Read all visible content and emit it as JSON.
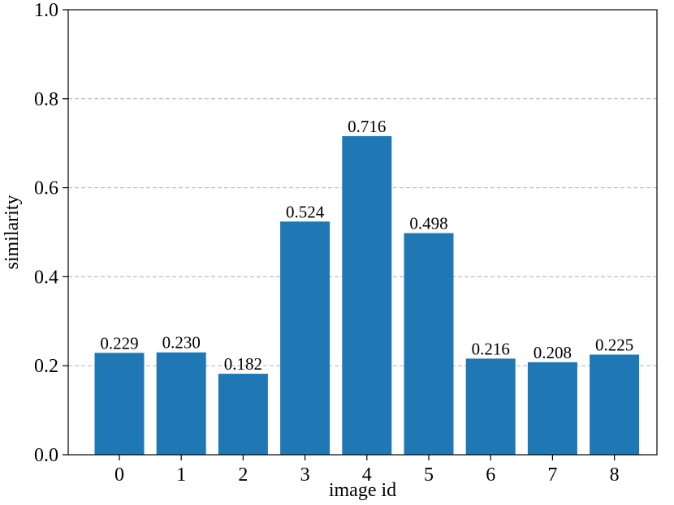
{
  "chart_data": {
    "type": "bar",
    "categories": [
      "0",
      "1",
      "2",
      "3",
      "4",
      "5",
      "6",
      "7",
      "8"
    ],
    "values": [
      0.229,
      0.23,
      0.182,
      0.524,
      0.716,
      0.498,
      0.216,
      0.208,
      0.225
    ],
    "data_labels": [
      "0.229",
      "0.230",
      "0.182",
      "0.524",
      "0.716",
      "0.498",
      "0.216",
      "0.208",
      "0.225"
    ],
    "title": "",
    "xlabel": "image id",
    "ylabel": "similarity",
    "ylim": [
      0,
      1.0
    ],
    "yticks": [
      "0.0",
      "0.2",
      "0.4",
      "0.6",
      "0.8",
      "1.0"
    ],
    "grid": "horizontal dashed",
    "bar_color": "#1f77b4"
  }
}
